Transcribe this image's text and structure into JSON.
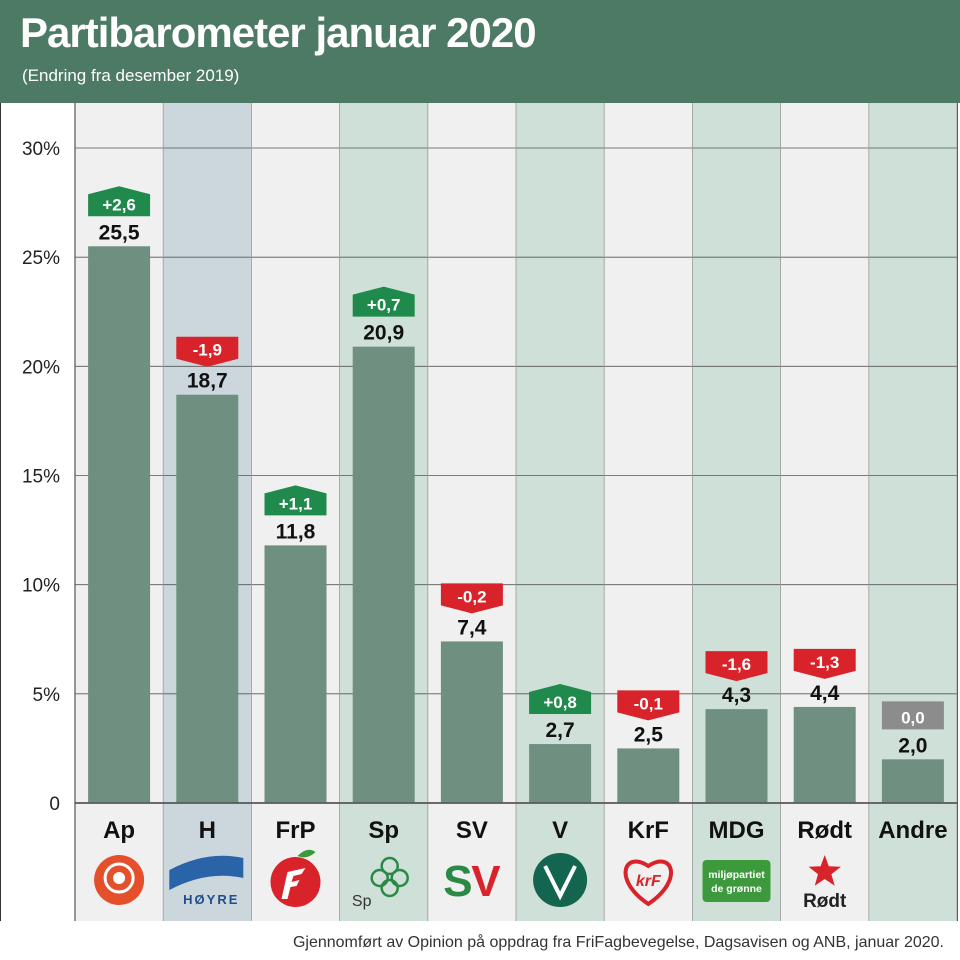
{
  "header": {
    "title": "Partibarometer januar 2020",
    "subtitle": "(Endring fra desember 2019)"
  },
  "footer": {
    "source": "Gjennomført av Opinion på oppdrag fra FriFagbevegelse, Dagsavisen og ANB, januar 2020."
  },
  "colors": {
    "header_bg": "#4c7a65",
    "bar": "#6f9080",
    "positive": "#1f8a4c",
    "negative": "#d8232a",
    "neutral": "#8c8c8c"
  },
  "chart_data": {
    "type": "bar",
    "title": "Partibarometer januar 2020",
    "subtitle": "(Endring fra desember 2019)",
    "ylim": [
      0,
      30
    ],
    "yticks": [
      "0",
      "5%",
      "10%",
      "15%",
      "20%",
      "25%",
      "30%"
    ],
    "ytick_values": [
      0,
      5,
      10,
      15,
      20,
      25,
      30
    ],
    "grid": true,
    "categories": [
      "Ap",
      "H",
      "FrP",
      "Sp",
      "SV",
      "V",
      "KrF",
      "MDG",
      "Rødt",
      "Andre"
    ],
    "values": [
      25.5,
      18.7,
      11.8,
      20.9,
      7.4,
      2.7,
      2.5,
      4.3,
      4.4,
      2.0
    ],
    "value_labels": [
      "25,5",
      "18,7",
      "11,8",
      "20,9",
      "7,4",
      "2,7",
      "2,5",
      "4,3",
      "4,4",
      "2,0"
    ],
    "changes": [
      2.6,
      -1.9,
      1.1,
      0.7,
      -0.2,
      0.8,
      -0.1,
      -1.6,
      -1.3,
      0.0
    ],
    "change_labels": [
      "+2,6",
      "-1,9",
      "+1,1",
      "+0,7",
      "-0,2",
      "+0,8",
      "-0,1",
      "-1,6",
      "-1,3",
      "0,0"
    ],
    "column_shades": [
      "#f0f0f0",
      "#ccd7dd",
      "#f0f0f0",
      "#cfe0d8",
      "#f0f0f0",
      "#cfe0d8",
      "#f0f0f0",
      "#cfe0d8",
      "#f0f0f0",
      "#cfe0d8"
    ],
    "logos": [
      {
        "icon": "rose-icon",
        "text": ""
      },
      {
        "icon": "hoyre-flag-icon",
        "text": "HØYRE"
      },
      {
        "icon": "apple-icon",
        "text": ""
      },
      {
        "icon": "clover-icon",
        "text": "Sp"
      },
      {
        "icon": "sv-logo-icon",
        "text": "SV"
      },
      {
        "icon": "v-circle-icon",
        "text": ""
      },
      {
        "icon": "heart-icon",
        "text": "krF"
      },
      {
        "icon": "mdg-box-icon",
        "text": "miljøpartiet de grønne"
      },
      {
        "icon": "star-icon",
        "text": "Rødt"
      },
      {
        "icon": "none",
        "text": ""
      }
    ]
  }
}
